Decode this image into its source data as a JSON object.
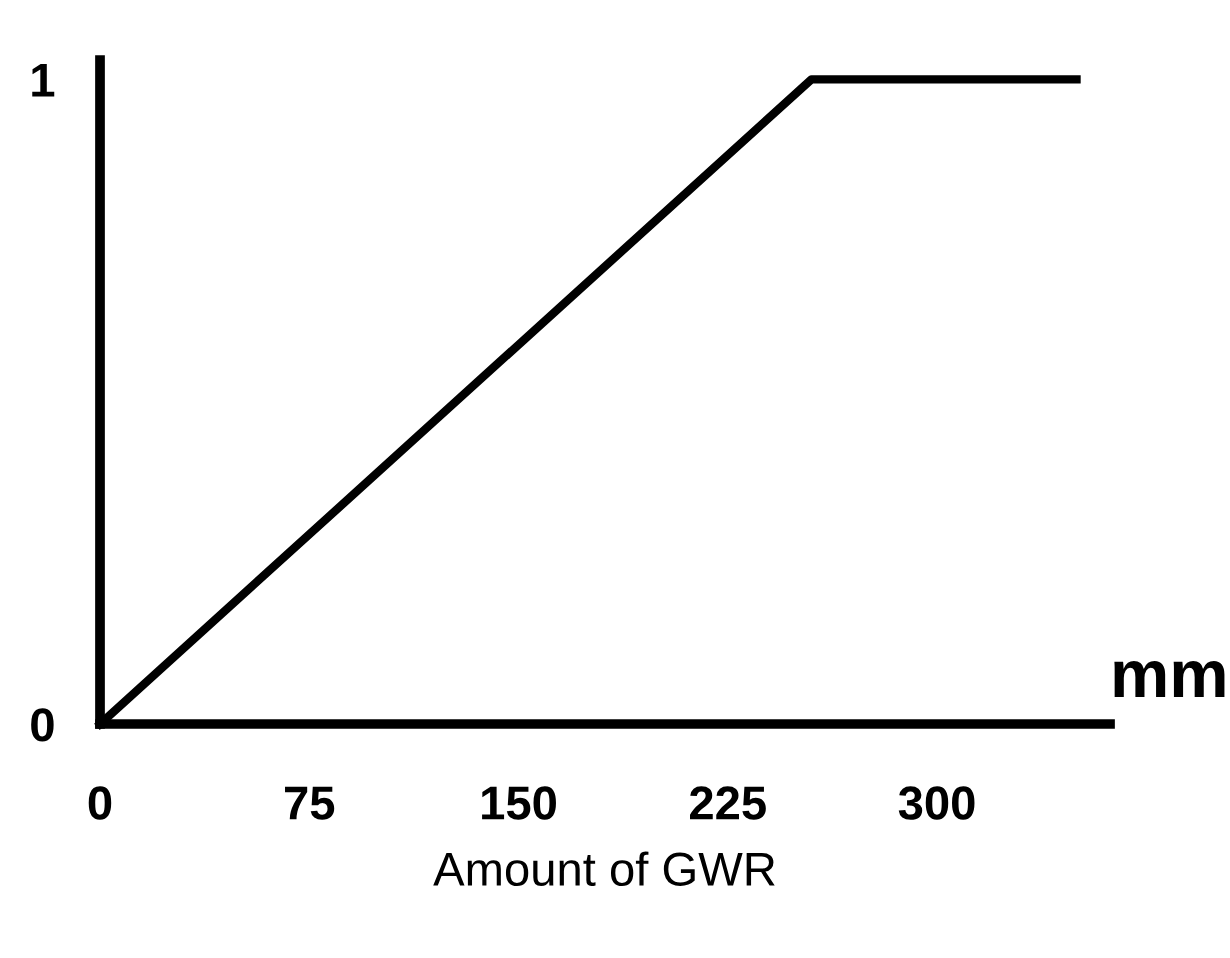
{
  "chart_data": {
    "type": "line",
    "xlabel": "Amount of GWR",
    "annotations": [
      "mm"
    ],
    "x": [
      0,
      255,
      350
    ],
    "series": [
      {
        "color": "#000000",
        "values": [
          0,
          1,
          1
        ]
      }
    ],
    "xlim": [
      0,
      362
    ],
    "ylim": [
      0,
      1.03
    ],
    "xticks": [
      0,
      75,
      150,
      225,
      300
    ],
    "yticks": [
      0,
      1
    ],
    "grid": false,
    "legend": false,
    "marker": "none",
    "line_style": "solid"
  }
}
